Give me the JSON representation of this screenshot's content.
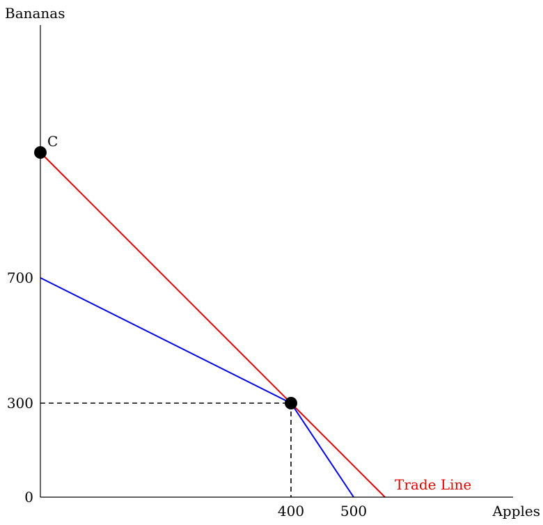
{
  "axes": {
    "x_label": "Apples",
    "y_label": "Bananas",
    "x_ticks": [
      {
        "value": 400,
        "label": "400"
      },
      {
        "value": 500,
        "label": "500"
      }
    ],
    "y_ticks": [
      {
        "value": 0,
        "label": "0"
      },
      {
        "value": 300,
        "label": "300"
      },
      {
        "value": 700,
        "label": "700"
      }
    ]
  },
  "ppf_line": {
    "color": "#0000ee",
    "points": [
      [
        0,
        700
      ],
      [
        400,
        300
      ],
      [
        500,
        0
      ]
    ]
  },
  "trade_line": {
    "color": "#e00000",
    "label": "Trade Line",
    "points": [
      [
        0,
        1100
      ],
      [
        550,
        0
      ]
    ]
  },
  "guides": {
    "x": 400,
    "y": 300
  },
  "points": [
    {
      "label": "C",
      "x": 0,
      "y": 1100
    },
    {
      "label": "",
      "x": 400,
      "y": 300
    }
  ]
}
